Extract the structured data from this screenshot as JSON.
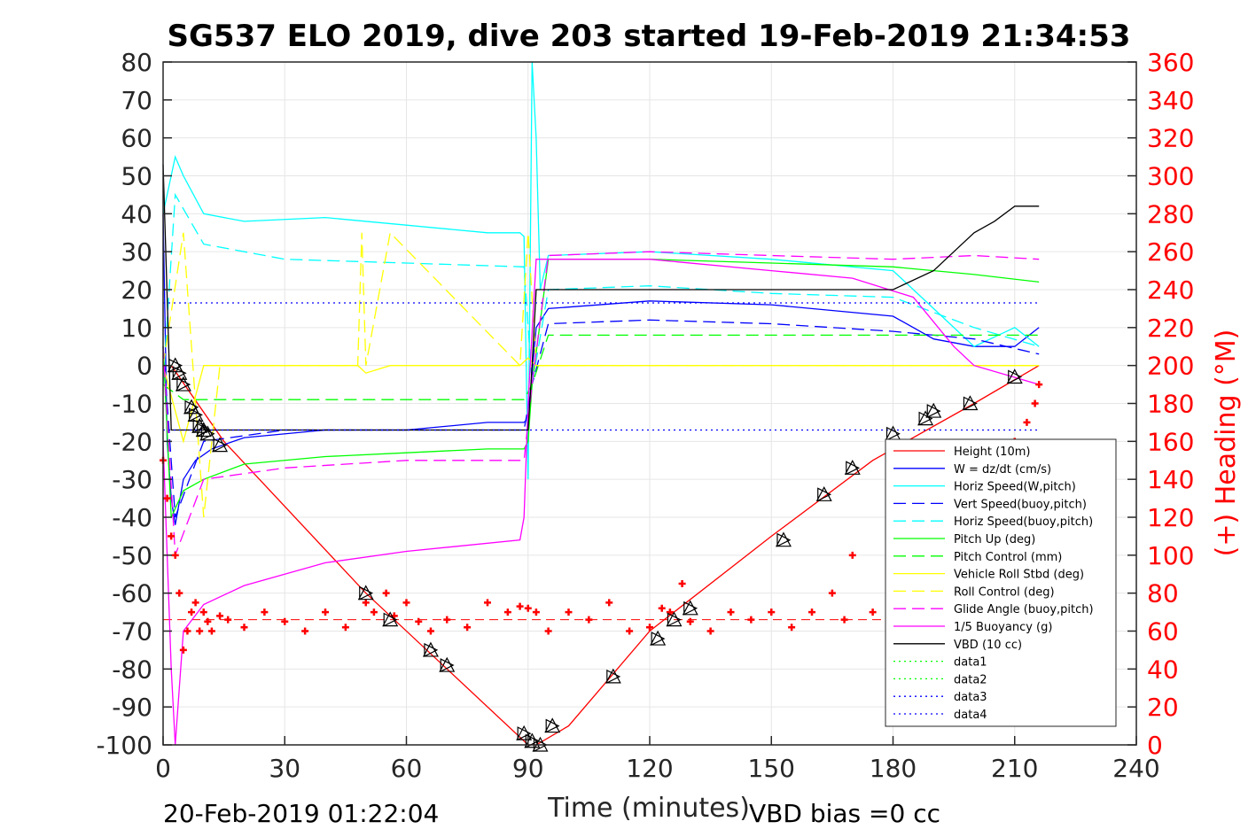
{
  "chart_data": {
    "type": "line",
    "title": "SG537 ELO 2019, dive 203 started 19-Feb-2019 21:34:53",
    "xlabel": "Time (minutes)",
    "ylabel": "",
    "y2label": "(+) Heading (°M)",
    "xlim": [
      0,
      240
    ],
    "ylim": [
      -100,
      80
    ],
    "y2lim": [
      0,
      360
    ],
    "xticks": [
      "0",
      "30",
      "60",
      "90",
      "120",
      "150",
      "180",
      "210",
      "240"
    ],
    "yticks": [
      "80",
      "70",
      "60",
      "50",
      "40",
      "30",
      "20",
      "10",
      "0",
      "-10",
      "-20",
      "-30",
      "-40",
      "-50",
      "-60",
      "-70",
      "-80",
      "-90",
      "-100"
    ],
    "y2ticks": [
      "360",
      "340",
      "320",
      "300",
      "280",
      "260",
      "240",
      "220",
      "200",
      "180",
      "160",
      "140",
      "120",
      "100",
      "80",
      "60",
      "40",
      "20",
      "0"
    ],
    "grid": true,
    "legend_position": "bottom-right",
    "footer_left": "20-Feb-2019 01:22:04",
    "footer_right": "VBD bias =0 cc",
    "series": [
      {
        "name": "Height (10m)",
        "color": "#ff0000",
        "style": "solid",
        "x": [
          0,
          2,
          15,
          50,
          70,
          90,
          92,
          100,
          120,
          150,
          175,
          200,
          216
        ],
        "y": [
          0,
          0,
          -20,
          -60,
          -80,
          -100,
          -100,
          -95,
          -70,
          -45,
          -25,
          -10,
          0
        ]
      },
      {
        "name": "W = dz/dt (cm/s)",
        "color": "#0000ff",
        "style": "solid",
        "x": [
          0,
          1,
          2,
          3,
          5,
          8,
          12,
          20,
          40,
          60,
          80,
          89,
          90,
          92,
          95,
          120,
          150,
          180,
          190,
          200,
          210,
          216
        ],
        "y": [
          40,
          -20,
          -35,
          -42,
          -30,
          -25,
          -22,
          -19,
          -17,
          -17,
          -15,
          -15,
          -14,
          10,
          15,
          17,
          16,
          13,
          7,
          5,
          5,
          10
        ]
      },
      {
        "name": "Horiz Speed(W,pitch)",
        "color": "#00ffff",
        "style": "solid",
        "x": [
          0,
          3,
          5,
          10,
          20,
          40,
          60,
          80,
          88,
          89,
          90,
          91,
          92,
          93,
          95,
          120,
          150,
          180,
          190,
          200,
          210,
          216
        ],
        "y": [
          40,
          55,
          50,
          40,
          38,
          39,
          37,
          35,
          35,
          34,
          -30,
          80,
          60,
          20,
          29,
          30,
          28,
          25,
          15,
          5,
          10,
          5
        ]
      },
      {
        "name": "Vert Speed(buoy,pitch)",
        "color": "#0000ff",
        "style": "dash",
        "x": [
          0,
          3,
          10,
          30,
          60,
          89,
          91,
          95,
          120,
          150,
          180,
          200,
          216
        ],
        "y": [
          5,
          -40,
          -20,
          -17,
          -17,
          -17,
          -5,
          11,
          12,
          11,
          9,
          7,
          3
        ]
      },
      {
        "name": "Horiz Speed(buoy,pitch)",
        "color": "#00ffff",
        "style": "dash",
        "x": [
          0,
          3,
          10,
          30,
          60,
          89,
          91,
          95,
          120,
          150,
          180,
          200,
          216
        ],
        "y": [
          -5,
          45,
          32,
          28,
          27,
          26,
          -5,
          20,
          21,
          19,
          18,
          10,
          5
        ]
      },
      {
        "name": "Pitch Up (deg)",
        "color": "#00ff00",
        "style": "solid",
        "x": [
          0,
          2,
          5,
          10,
          20,
          40,
          60,
          80,
          89,
          90,
          91,
          95,
          120,
          150,
          180,
          200,
          216
        ],
        "y": [
          5,
          -40,
          -33,
          -30,
          -26,
          -24,
          -23,
          -22,
          -22,
          -20,
          -5,
          28,
          28,
          27,
          26,
          24,
          22
        ]
      },
      {
        "name": "Pitch Control (mm)",
        "color": "#00ff00",
        "style": "dash",
        "x": [
          0,
          5,
          89,
          91,
          95,
          200,
          216
        ],
        "y": [
          -5,
          -9,
          -9,
          -5,
          8,
          8,
          8
        ]
      },
      {
        "name": "Vehicle Roll Stbd (deg)",
        "color": "#ffff00",
        "style": "solid",
        "x": [
          0,
          5,
          10,
          14,
          48,
          50,
          56,
          88,
          90,
          92,
          180,
          216
        ],
        "y": [
          0,
          -20,
          0,
          0,
          0,
          -2,
          0,
          0,
          2,
          0,
          0,
          0
        ]
      },
      {
        "name": "Roll Control (deg)",
        "color": "#ffff00",
        "style": "dash",
        "x": [
          0,
          5,
          10,
          14,
          48,
          49,
          50,
          56,
          88,
          90,
          92,
          180,
          216
        ],
        "y": [
          0,
          35,
          -40,
          0,
          0,
          35,
          0,
          35,
          0,
          35,
          0,
          0,
          0
        ]
      },
      {
        "name": "Glide Angle (buoy,pitch)",
        "color": "#ff00ff",
        "style": "dash",
        "x": [
          0,
          3,
          10,
          30,
          60,
          89,
          91,
          95,
          120,
          150,
          180,
          200,
          216
        ],
        "y": [
          5,
          -50,
          -30,
          -27,
          -25,
          -25,
          -5,
          29,
          30,
          29,
          28,
          29,
          28
        ]
      },
      {
        "name": "1/5 Buoyancy (g)",
        "color": "#ff00ff",
        "style": "solid",
        "x": [
          0,
          2,
          3,
          5,
          10,
          20,
          40,
          60,
          88,
          89,
          90,
          92,
          120,
          150,
          170,
          185,
          195,
          200,
          216
        ],
        "y": [
          -20,
          -80,
          -100,
          -70,
          -63,
          -58,
          -52,
          -49,
          -46,
          -40,
          -10,
          28,
          28,
          25,
          23,
          18,
          5,
          0,
          -5
        ]
      },
      {
        "name": "VBD (10 cc)",
        "color": "#000000",
        "style": "solid",
        "x": [
          0,
          2,
          3,
          89,
          90,
          91,
          92,
          178,
          179,
          180,
          190,
          195,
          200,
          205,
          210,
          216
        ],
        "y": [
          53,
          -17,
          -17,
          -17,
          -17,
          0,
          20,
          20,
          20,
          20,
          25,
          30,
          35,
          38,
          42,
          42
        ]
      },
      {
        "name": "data1",
        "color": "#00ff00",
        "style": "dot",
        "x": [],
        "y": []
      },
      {
        "name": "data2",
        "color": "#00ff00",
        "style": "dot",
        "x": [],
        "y": []
      },
      {
        "name": "data3",
        "color": "#0000ff",
        "style": "dot",
        "x": [
          0,
          216
        ],
        "y": [
          16.5,
          16.5
        ]
      },
      {
        "name": "data4",
        "color": "#0000ff",
        "style": "dot",
        "x": [
          0,
          216
        ],
        "y": [
          -17,
          -17
        ]
      }
    ],
    "heading": {
      "name": "",
      "color": "#ff0000",
      "marker": "+",
      "axis": "right",
      "mean_line": 66,
      "x": [
        0,
        1,
        2,
        3,
        4,
        5,
        6,
        7,
        8,
        9,
        10,
        11,
        12,
        14,
        16,
        20,
        25,
        30,
        35,
        40,
        45,
        50,
        52,
        55,
        57,
        60,
        63,
        66,
        70,
        75,
        80,
        85,
        88,
        90,
        92,
        95,
        100,
        105,
        110,
        115,
        120,
        123,
        125,
        128,
        130,
        135,
        140,
        145,
        150,
        155,
        160,
        165,
        168,
        170,
        175,
        180,
        185,
        190,
        195,
        200,
        205,
        210,
        213,
        215,
        216
      ],
      "y": [
        150,
        130,
        110,
        100,
        80,
        50,
        60,
        70,
        75,
        60,
        70,
        65,
        60,
        68,
        66,
        62,
        70,
        65,
        60,
        70,
        62,
        75,
        70,
        80,
        68,
        75,
        65,
        60,
        66,
        62,
        75,
        70,
        73,
        72,
        70,
        60,
        70,
        66,
        75,
        60,
        62,
        72,
        70,
        85,
        65,
        60,
        70,
        66,
        70,
        62,
        70,
        80,
        66,
        100,
        70,
        60,
        70,
        75,
        55,
        80,
        150,
        160,
        170,
        180,
        190
      ]
    },
    "markers": {
      "name": "",
      "color": "#000000",
      "marker": "triangles",
      "x": [
        3,
        4,
        5,
        7,
        8,
        9,
        10,
        11,
        14,
        50,
        56,
        66,
        70,
        89,
        91,
        93,
        96,
        111,
        122,
        126,
        130,
        153,
        163,
        170,
        180,
        188,
        190,
        199,
        210
      ],
      "y": [
        0,
        -2,
        -5,
        -11,
        -13,
        -16,
        -17,
        -18,
        -21,
        -60,
        -67,
        -75,
        -79,
        -97,
        -99,
        -100,
        -95,
        -82,
        -72,
        -67,
        -64,
        -46,
        -34,
        -27,
        -18,
        -14,
        -12,
        -10,
        -3
      ]
    }
  }
}
